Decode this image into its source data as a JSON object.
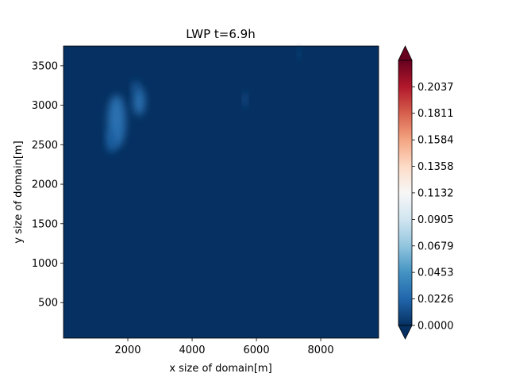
{
  "chart_data": {
    "type": "heatmap",
    "title": "LWP t=6.9h",
    "xlabel": "x size of domain[m]",
    "ylabel": "y size of domain[m]",
    "xlim": [
      0,
      9800
    ],
    "ylim": [
      50,
      3750
    ],
    "xticks": [
      2000,
      4000,
      6000,
      8000
    ],
    "yticks": [
      500,
      1000,
      1500,
      2000,
      2500,
      3000,
      3500
    ],
    "colormap": "RdBu_r",
    "colorbar": {
      "min": 0.0,
      "max": 0.2263,
      "ticks": [
        "0.0000",
        "0.0226",
        "0.0453",
        "0.0679",
        "0.0905",
        "0.1132",
        "0.1358",
        "0.1584",
        "0.1811",
        "0.2037"
      ],
      "extend": "both"
    },
    "background_value": 0.0,
    "features": [
      {
        "x": 1650,
        "y": 2800,
        "rx": 280,
        "ry": 330,
        "value": 0.028
      },
      {
        "x": 1500,
        "y": 2550,
        "rx": 160,
        "ry": 150,
        "value": 0.02
      },
      {
        "x": 2350,
        "y": 3050,
        "rx": 180,
        "ry": 180,
        "value": 0.028
      },
      {
        "x": 2250,
        "y": 3230,
        "rx": 110,
        "ry": 80,
        "value": 0.018
      },
      {
        "x": 5650,
        "y": 3070,
        "rx": 60,
        "ry": 90,
        "value": 0.018
      },
      {
        "x": 7330,
        "y": 3650,
        "rx": 45,
        "ry": 70,
        "value": 0.014
      }
    ]
  }
}
